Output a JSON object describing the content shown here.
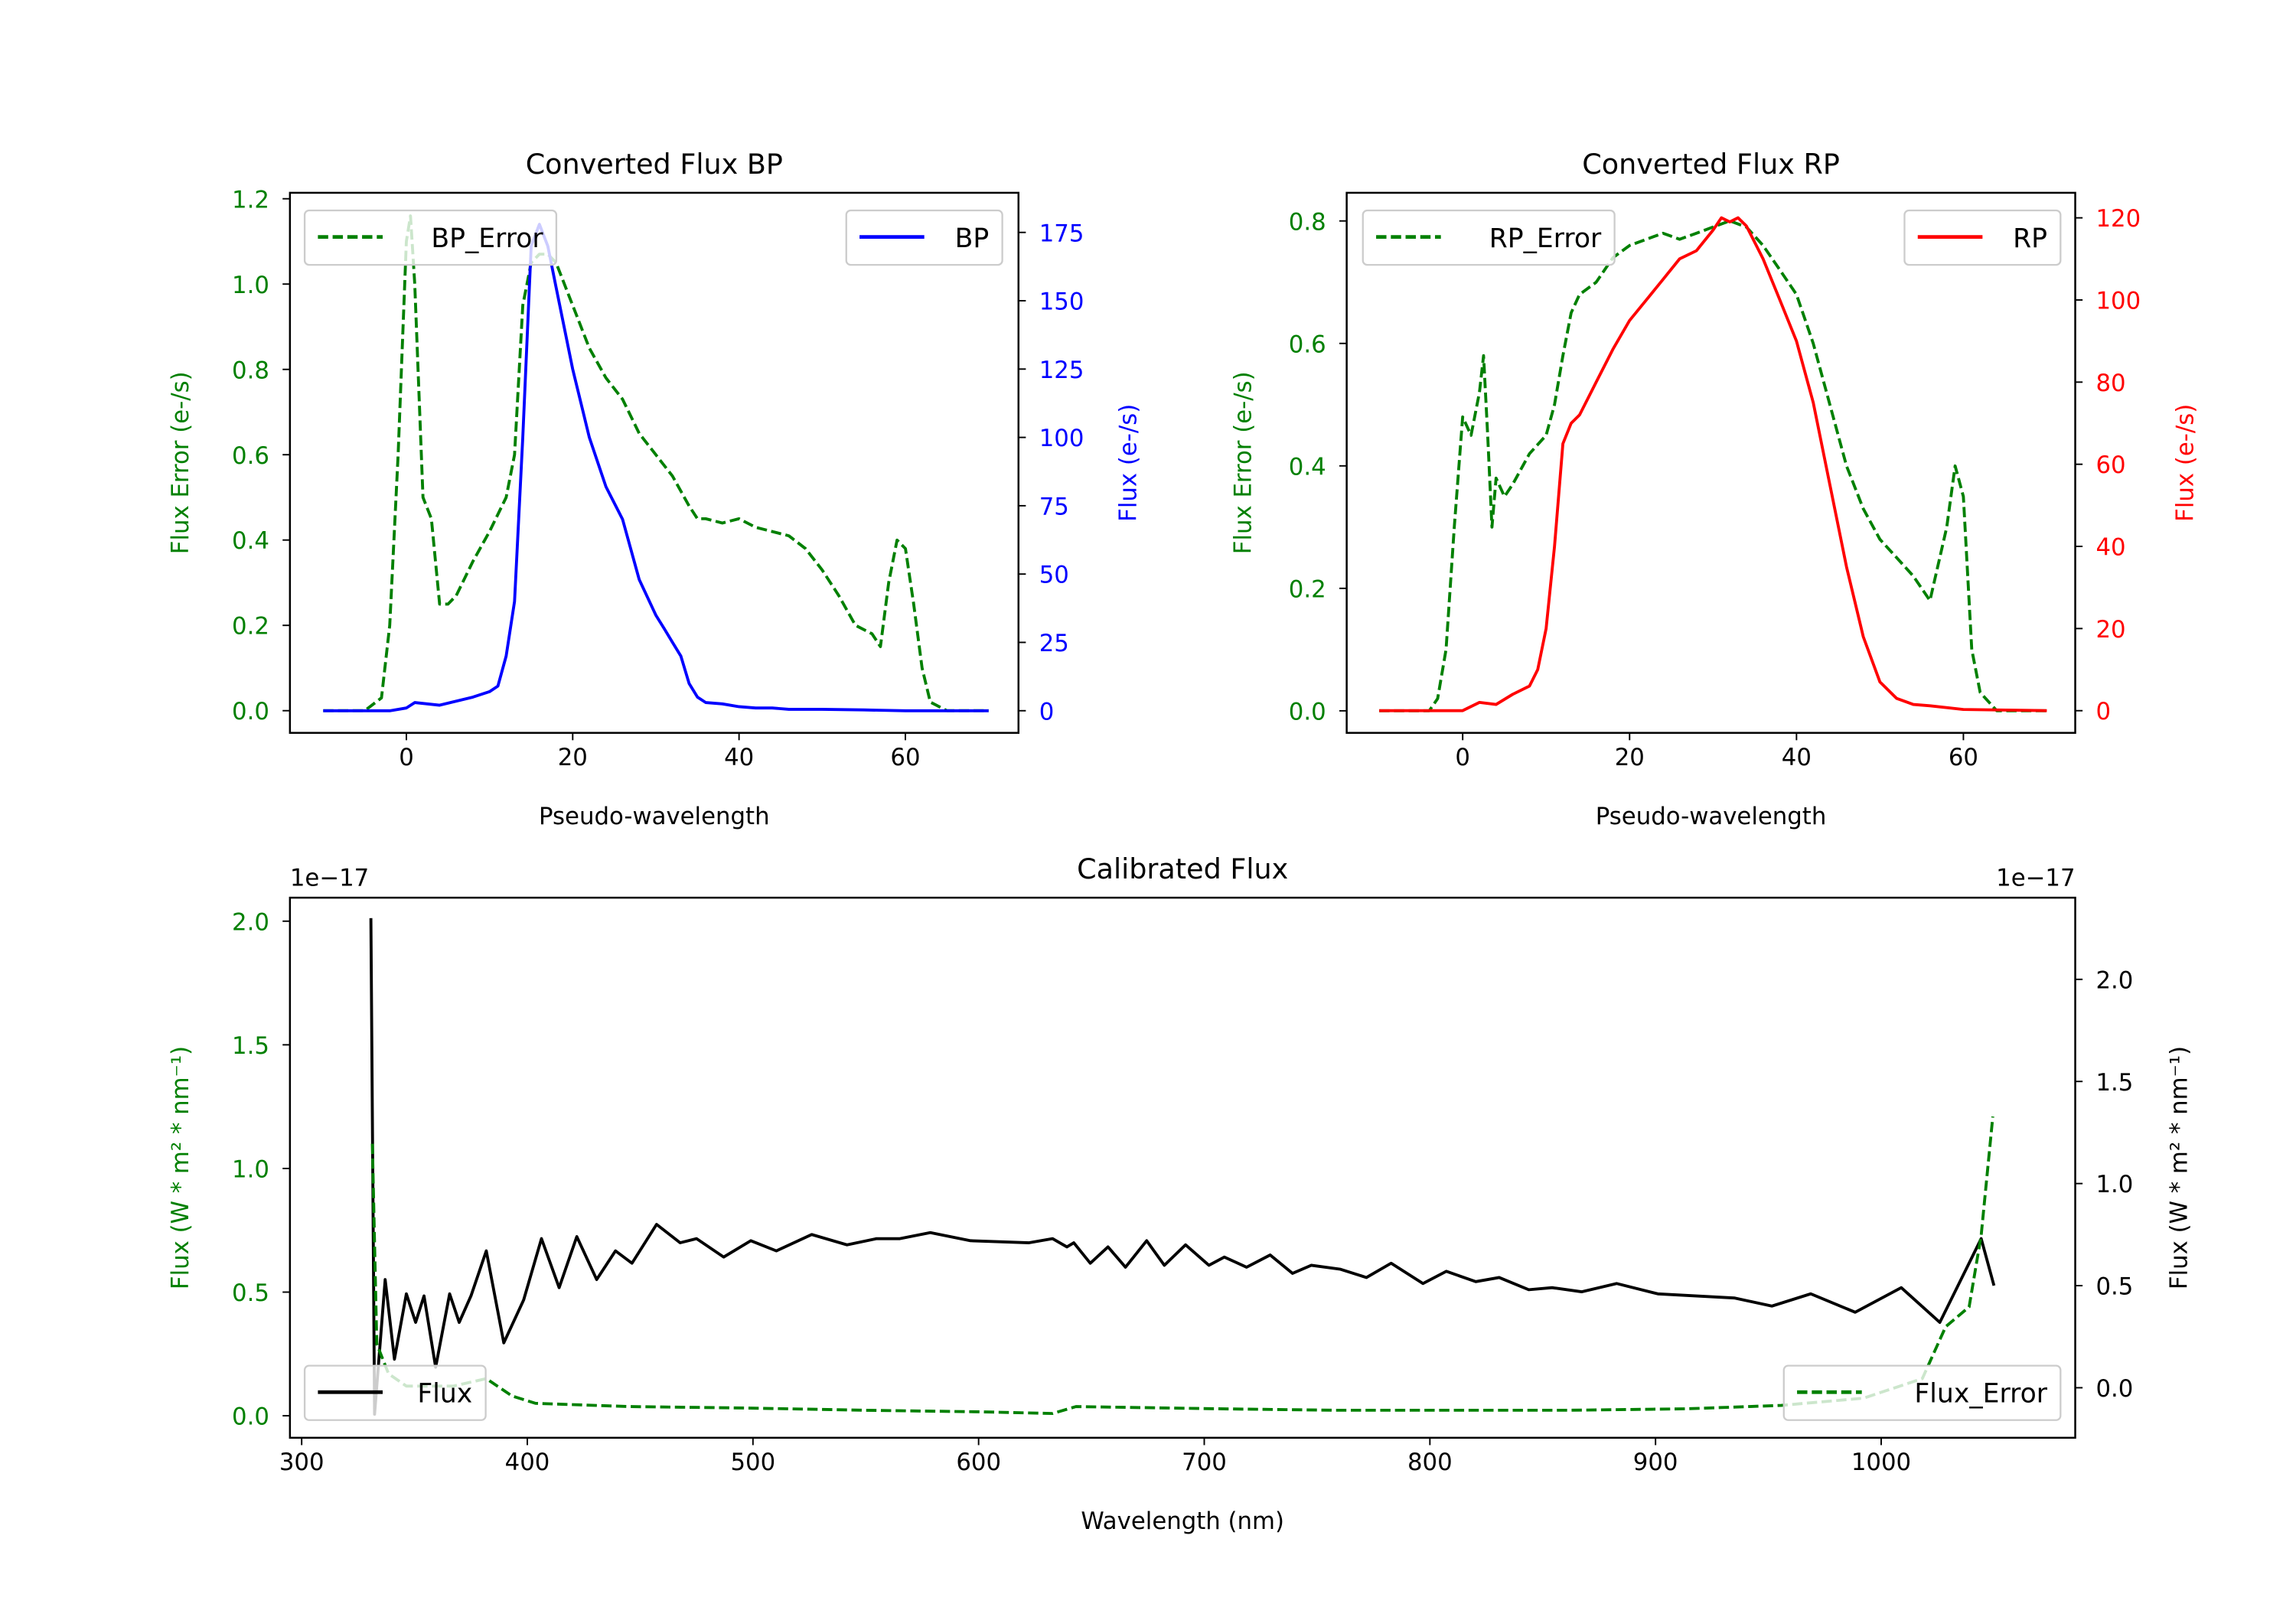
{
  "chart_data": [
    {
      "type": "line",
      "title": "Converted Flux BP",
      "xlabel": "Pseudo-wavelength",
      "ylabel_left": "Flux Error (e-/s)",
      "ylabel_right": "Flux (e-/s)",
      "left_color": "#008000",
      "right_color": "#0000ff",
      "xlim": [
        -14,
        73.6
      ],
      "ylim_left": [
        -0.052,
        1.214
      ],
      "ylim_right": [
        -8.1,
        189.5
      ],
      "xticks": [
        0,
        20,
        40,
        60
      ],
      "xtick_labels": [
        "0",
        "20",
        "40",
        "60"
      ],
      "yticks_left": [
        0,
        0.2,
        0.4,
        0.6,
        0.8,
        1.0,
        1.2
      ],
      "ytick_labels_left": [
        "0.0",
        "0.2",
        "0.4",
        "0.6",
        "0.8",
        "1.0",
        "1.2"
      ],
      "yticks_right": [
        0,
        25,
        50,
        75,
        100,
        125,
        150,
        175
      ],
      "ytick_labels_right": [
        "0",
        "25",
        "50",
        "75",
        "100",
        "125",
        "150",
        "175"
      ],
      "grid": false,
      "series": [
        {
          "name": "BP_Error",
          "axis": "left",
          "color": "#008000",
          "style": "dashed",
          "legend": "top-left",
          "x": [
            -10,
            -5,
            -3,
            -2,
            -1,
            0,
            0.5,
            1,
            2,
            3,
            4,
            5,
            6,
            8,
            10,
            12,
            13,
            14,
            15,
            16,
            17,
            18,
            20,
            22,
            24,
            26,
            28,
            30,
            32,
            34,
            35,
            36,
            38,
            40,
            42,
            44,
            46,
            48,
            50,
            52,
            54,
            56,
            57,
            58,
            59,
            60,
            61,
            62,
            63,
            65,
            70
          ],
          "y": [
            0,
            0,
            0.03,
            0.2,
            0.6,
            1.1,
            1.16,
            1.0,
            0.5,
            0.45,
            0.25,
            0.25,
            0.27,
            0.35,
            0.42,
            0.5,
            0.6,
            0.95,
            1.05,
            1.07,
            1.07,
            1.05,
            0.95,
            0.85,
            0.78,
            0.73,
            0.65,
            0.6,
            0.55,
            0.48,
            0.45,
            0.45,
            0.44,
            0.45,
            0.43,
            0.42,
            0.41,
            0.38,
            0.33,
            0.27,
            0.2,
            0.18,
            0.15,
            0.3,
            0.4,
            0.38,
            0.25,
            0.1,
            0.02,
            0,
            0
          ]
        },
        {
          "name": "BP",
          "axis": "right",
          "color": "#0000ff",
          "style": "solid",
          "legend": "top-right",
          "x": [
            -10,
            -2,
            0,
            1,
            4,
            8,
            10,
            11,
            12,
            13,
            14,
            15,
            16,
            17,
            18,
            20,
            22,
            24,
            26,
            28,
            30,
            31,
            32,
            33,
            34,
            35,
            36,
            38,
            40,
            42,
            44,
            46,
            50,
            55,
            60,
            70
          ],
          "y": [
            0,
            0,
            1,
            3,
            2,
            5,
            7,
            9,
            20,
            40,
            100,
            170,
            178,
            170,
            155,
            125,
            100,
            82,
            70,
            48,
            35,
            30,
            25,
            20,
            10,
            5,
            3,
            2.5,
            1.5,
            1,
            1,
            0.5,
            0.5,
            0.3,
            0,
            0
          ]
        }
      ]
    },
    {
      "type": "line",
      "title": "Converted Flux RP",
      "xlabel": "Pseudo-wavelength",
      "ylabel_left": "Flux Error (e-/s)",
      "ylabel_right": "Flux (e-/s)",
      "left_color": "#008000",
      "right_color": "#ff0000",
      "xlim": [
        -13.9,
        73.4
      ],
      "ylim_left": [
        -0.036,
        0.846
      ],
      "ylim_right": [
        -5.4,
        126.1
      ],
      "xticks": [
        0,
        20,
        40,
        60
      ],
      "xtick_labels": [
        "0",
        "20",
        "40",
        "60"
      ],
      "yticks_left": [
        0,
        0.2,
        0.4,
        0.6,
        0.8
      ],
      "ytick_labels_left": [
        "0.0",
        "0.2",
        "0.4",
        "0.6",
        "0.8"
      ],
      "yticks_right": [
        0,
        20,
        40,
        60,
        80,
        100,
        120
      ],
      "ytick_labels_right": [
        "0",
        "20",
        "40",
        "60",
        "80",
        "100",
        "120"
      ],
      "grid": false,
      "series": [
        {
          "name": "RP_Error",
          "axis": "left",
          "color": "#008000",
          "style": "dashed",
          "legend": "top-left",
          "x": [
            -10,
            -4,
            -3,
            -2,
            -1,
            0,
            1,
            2,
            2.5,
            3,
            3.5,
            4,
            5,
            6,
            8,
            10,
            11,
            12,
            13,
            14,
            16,
            18,
            20,
            22,
            24,
            26,
            28,
            30,
            32,
            34,
            36,
            38,
            40,
            42,
            44,
            46,
            48,
            50,
            52,
            54,
            56,
            58,
            59,
            60,
            61,
            62,
            64,
            70
          ],
          "y": [
            0,
            0,
            0.02,
            0.1,
            0.3,
            0.48,
            0.45,
            0.52,
            0.58,
            0.45,
            0.3,
            0.38,
            0.35,
            0.37,
            0.42,
            0.45,
            0.5,
            0.58,
            0.65,
            0.68,
            0.7,
            0.74,
            0.76,
            0.77,
            0.78,
            0.77,
            0.78,
            0.79,
            0.8,
            0.79,
            0.76,
            0.72,
            0.68,
            0.6,
            0.5,
            0.4,
            0.33,
            0.28,
            0.25,
            0.22,
            0.18,
            0.3,
            0.4,
            0.35,
            0.1,
            0.03,
            0,
            0
          ]
        },
        {
          "name": "RP",
          "axis": "right",
          "color": "#ff0000",
          "style": "solid",
          "legend": "top-right",
          "x": [
            -10,
            0,
            2,
            4,
            6,
            8,
            9,
            10,
            11,
            12,
            13,
            14,
            16,
            18,
            20,
            22,
            24,
            26,
            28,
            30,
            31,
            32,
            33,
            34,
            36,
            38,
            40,
            42,
            44,
            46,
            48,
            50,
            52,
            54,
            56,
            60,
            70
          ],
          "y": [
            0,
            0,
            2,
            1.5,
            4,
            6,
            10,
            20,
            40,
            65,
            70,
            72,
            80,
            88,
            95,
            100,
            105,
            110,
            112,
            117,
            120,
            119,
            120,
            118,
            110,
            100,
            90,
            75,
            55,
            35,
            18,
            7,
            3,
            1.5,
            1.2,
            0.3,
            0
          ]
        }
      ]
    },
    {
      "type": "line",
      "title": "Calibrated Flux",
      "xlabel": "Wavelength (nm)",
      "ylabel_left": "Flux (W * m² * nm⁻¹)",
      "ylabel_right": "Flux (W * m² * nm⁻¹)",
      "left_color": "#008000",
      "right_color": "#000000",
      "offset_left": "1e−17",
      "offset_right": "1e−17",
      "xlim": [
        294.8,
        1086
      ],
      "ylim_left": [
        -0.089,
        2.095
      ],
      "ylim_right": [
        -0.245,
        2.4
      ],
      "xticks": [
        300,
        400,
        500,
        600,
        700,
        800,
        900,
        1000
      ],
      "xtick_labels": [
        "300",
        "400",
        "500",
        "600",
        "700",
        "800",
        "900",
        "1000"
      ],
      "yticks_left": [
        0,
        0.5,
        1.0,
        1.5,
        2.0
      ],
      "ytick_labels_left": [
        "0.0",
        "0.5",
        "1.0",
        "1.5",
        "2.0"
      ],
      "yticks_right": [
        0,
        0.5,
        1.0,
        1.5,
        2.0
      ],
      "ytick_labels_right": [
        "0.0",
        "0.5",
        "1.0",
        "1.5",
        "2.0"
      ],
      "grid": false,
      "series": [
        {
          "name": "Flux",
          "axis": "right",
          "color": "#000000",
          "style": "solid",
          "legend": "bottom-left",
          "x": [
            330.7,
            332.3,
            337,
            341.1,
            346.4,
            350.5,
            354.2,
            359.4,
            365.6,
            369.8,
            375,
            381.8,
            389.6,
            398.4,
            406.3,
            414.1,
            421.9,
            430.7,
            439.1,
            446.4,
            457.3,
            467.7,
            475,
            487,
            499,
            510.4,
            526,
            541.7,
            554.7,
            565.1,
            578.6,
            596.4,
            622.4,
            632.8,
            639.1,
            642.2,
            649.5,
            657.3,
            665.1,
            674.5,
            682.3,
            691.7,
            702.1,
            708.9,
            718.8,
            729.2,
            739.1,
            747.4,
            760.4,
            771.9,
            782.8,
            796.9,
            807.3,
            820.3,
            830.7,
            843.8,
            854.2,
            867.2,
            882.8,
            901,
            934.9,
            951.6,
            968.8,
            988.5,
            1008.9,
            1026,
            1044.3,
            1050
          ],
          "y": [
            2.3,
            -0.13,
            0.53,
            0.14,
            0.46,
            0.32,
            0.45,
            0.1,
            0.46,
            0.32,
            0.45,
            0.67,
            0.22,
            0.43,
            0.73,
            0.49,
            0.74,
            0.53,
            0.67,
            0.61,
            0.8,
            0.71,
            0.73,
            0.64,
            0.72,
            0.67,
            0.75,
            0.7,
            0.73,
            0.73,
            0.76,
            0.72,
            0.71,
            0.73,
            0.69,
            0.71,
            0.61,
            0.69,
            0.59,
            0.72,
            0.6,
            0.7,
            0.6,
            0.64,
            0.59,
            0.65,
            0.56,
            0.6,
            0.58,
            0.54,
            0.61,
            0.51,
            0.57,
            0.52,
            0.54,
            0.48,
            0.49,
            0.47,
            0.51,
            0.46,
            0.44,
            0.4,
            0.46,
            0.37,
            0.49,
            0.32,
            0.73,
            0.5
          ]
        },
        {
          "name": "Flux_Error",
          "axis": "left",
          "color": "#008000",
          "style": "dashed",
          "legend": "bottom-right",
          "x": [
            331.3,
            333.3,
            338.5,
            346.4,
            367.2,
            381.8,
            393.2,
            403.6,
            445.3,
            497.4,
            549.5,
            601.6,
            632.8,
            643.2,
            705.7,
            757.8,
            862,
            914,
            955.7,
            992.2,
            1018.2,
            1028.6,
            1039,
            1044.3,
            1049.5
          ],
          "y": [
            1.1,
            0.29,
            0.17,
            0.12,
            0.12,
            0.15,
            0.08,
            0.05,
            0.037,
            0.031,
            0.022,
            0.016,
            0.009,
            0.037,
            0.028,
            0.022,
            0.022,
            0.028,
            0.042,
            0.071,
            0.15,
            0.36,
            0.44,
            0.73,
            1.21
          ]
        }
      ]
    }
  ]
}
